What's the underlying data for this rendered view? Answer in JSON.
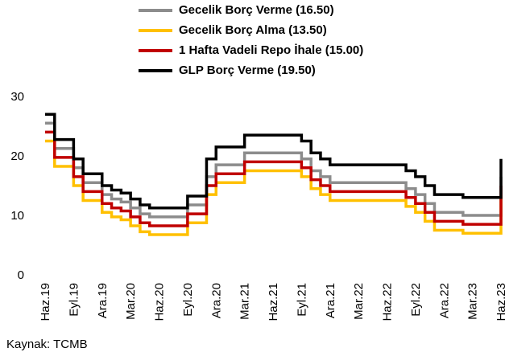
{
  "chart_data": {
    "type": "step-line",
    "source": "Kaynak: TCMB",
    "categories": [
      "Haz.19",
      null,
      null,
      "Eyl.19",
      null,
      null,
      "Ara.19",
      null,
      null,
      "Mar.20",
      null,
      null,
      "Haz.20",
      null,
      null,
      "Eyl.20",
      null,
      null,
      "Ara.20",
      null,
      null,
      "Mar.21",
      null,
      null,
      "Haz.21",
      null,
      null,
      "Eyl.21",
      null,
      null,
      "Ara.21",
      null,
      null,
      "Mar.22",
      null,
      null,
      "Haz.22",
      null,
      null,
      "Eyl.22",
      null,
      null,
      "Ara.22",
      null,
      null,
      "Mar.23",
      null,
      null,
      "Haz.23"
    ],
    "series": [
      {
        "name": "Gecelik Borç Verme (16.50)",
        "color": "#8c8c8c",
        "values": [
          25.5,
          21.25,
          21.25,
          18,
          15.5,
          15.5,
          13.5,
          12.75,
          12.25,
          11.25,
          10.25,
          9.75,
          9.75,
          9.75,
          9.75,
          11.75,
          11.75,
          16.5,
          18.5,
          18.5,
          18.5,
          20.5,
          20.5,
          20.5,
          20.5,
          20.5,
          20.5,
          19.5,
          17.5,
          16.5,
          15.5,
          15.5,
          15.5,
          15.5,
          15.5,
          15.5,
          15.5,
          15.5,
          14.5,
          13.5,
          12,
          10.5,
          10.5,
          10.5,
          10,
          10,
          10,
          10,
          16.5
        ]
      },
      {
        "name": "Gecelik Borç Alma (13.50)",
        "color": "#ffc000",
        "values": [
          22.5,
          18.25,
          18.25,
          15,
          12.5,
          12.5,
          10.5,
          9.75,
          9.25,
          8.25,
          7.25,
          6.75,
          6.75,
          6.75,
          6.75,
          8.75,
          8.75,
          13.5,
          15.5,
          15.5,
          15.5,
          17.5,
          17.5,
          17.5,
          17.5,
          17.5,
          17.5,
          16.5,
          14.5,
          13.5,
          12.5,
          12.5,
          12.5,
          12.5,
          12.5,
          12.5,
          12.5,
          12.5,
          11.5,
          10.5,
          9,
          7.5,
          7.5,
          7.5,
          7,
          7,
          7,
          7,
          13.5
        ]
      },
      {
        "name": "1 Hafta Vadeli Repo İhale (15.00)",
        "color": "#c00000",
        "values": [
          24,
          19.75,
          19.75,
          16.5,
          14,
          14,
          12,
          11.25,
          10.75,
          9.75,
          8.75,
          8.25,
          8.25,
          8.25,
          8.25,
          10.25,
          10.25,
          15,
          17,
          17,
          17,
          19,
          19,
          19,
          19,
          19,
          19,
          18,
          16,
          15,
          14,
          14,
          14,
          14,
          14,
          14,
          14,
          14,
          13,
          12,
          10.5,
          9,
          9,
          9,
          8.5,
          8.5,
          8.5,
          8.5,
          15
        ]
      },
      {
        "name": "GLP Borç Verme (19.50)",
        "color": "#000000",
        "values": [
          27,
          22.75,
          22.75,
          19.5,
          17,
          17,
          15,
          14.25,
          13.75,
          12.75,
          11.75,
          11.25,
          11.25,
          11.25,
          11.25,
          13.25,
          13.25,
          19.5,
          21.5,
          21.5,
          21.5,
          23.5,
          23.5,
          23.5,
          23.5,
          23.5,
          23.5,
          22.5,
          20.5,
          19.5,
          18.5,
          18.5,
          18.5,
          18.5,
          18.5,
          18.5,
          18.5,
          18.5,
          17.5,
          16.5,
          15,
          13.5,
          13.5,
          13.5,
          13,
          13,
          13,
          13,
          19.5
        ]
      }
    ],
    "ylim": [
      0,
      30
    ],
    "yticks": [
      0,
      10,
      20,
      30
    ],
    "grid": false
  }
}
